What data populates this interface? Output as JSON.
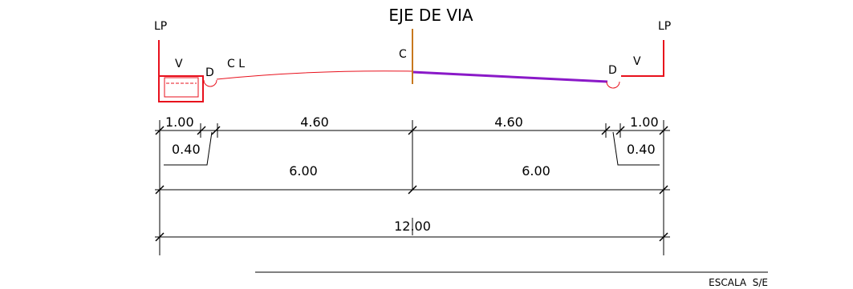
{
  "title": "EJE DE VIA",
  "labels": {
    "lp_left": "LP",
    "lp_right": "LP",
    "v_left": "V",
    "v_right": "V",
    "d_left": "D",
    "d_right": "D",
    "cl": "C L",
    "c": "C"
  },
  "dimensions": {
    "left_1": "1.00",
    "left_2": "4.60",
    "right_2": "4.60",
    "right_1": "1.00",
    "left_curb": "0.40",
    "right_curb": "0.40",
    "half_left": "6.00",
    "half_right": "6.00",
    "total": "12.00"
  },
  "scale_label": "ESCALA  S/E",
  "colors": {
    "red": "#e8101c",
    "purple": "#8a19c8",
    "axis": "#c8781e",
    "line": "#000000"
  }
}
